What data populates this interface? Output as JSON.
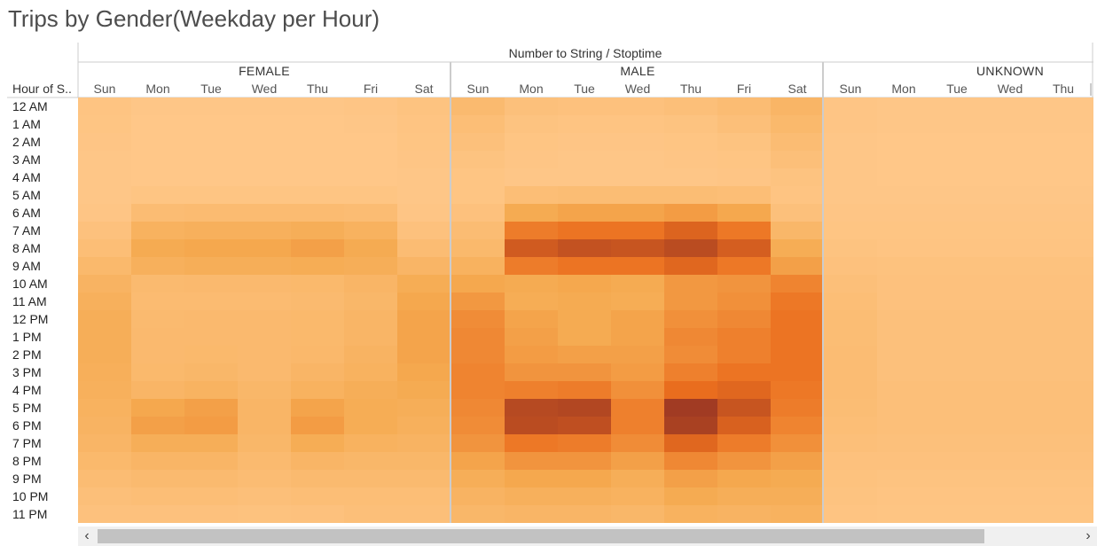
{
  "title": "Trips by Gender(Weekday per Hour)",
  "colors": {
    "low": "#ffc88a",
    "high": "#a13b23",
    "divider": "#cccccc",
    "scrollbar_track": "#f0f0f0",
    "scrollbar_thumb": "#c2c2c2"
  },
  "scrollbar": {
    "left_arrow": "‹",
    "right_arrow": "›"
  },
  "chart_data": {
    "type": "heatmap",
    "title": "Trips by Gender(Weekday per Hour)",
    "column_header": "Number to String / Stoptime",
    "row_header": "Hour of S..",
    "hours": [
      "12 AM",
      "1 AM",
      "2 AM",
      "3 AM",
      "4 AM",
      "5 AM",
      "6 AM",
      "7 AM",
      "8 AM",
      "9 AM",
      "10 AM",
      "11 AM",
      "12 PM",
      "1 PM",
      "2 PM",
      "3 PM",
      "4 PM",
      "5 PM",
      "6 PM",
      "7 PM",
      "8 PM",
      "9 PM",
      "10 PM",
      "11 PM"
    ],
    "days": [
      "Sun",
      "Mon",
      "Tue",
      "Wed",
      "Thu",
      "Fri",
      "Sat"
    ],
    "value_scale": "relative intensity 0-100 (color encoding, no legend shown)",
    "groups": [
      {
        "name": "FEMALE",
        "visible_days": 7,
        "values": [
          [
            5,
            2,
            2,
            2,
            2,
            3,
            6
          ],
          [
            4,
            1,
            1,
            1,
            1,
            2,
            5
          ],
          [
            3,
            1,
            1,
            1,
            1,
            1,
            4
          ],
          [
            2,
            1,
            1,
            1,
            1,
            1,
            3
          ],
          [
            2,
            1,
            1,
            1,
            1,
            1,
            2
          ],
          [
            2,
            4,
            4,
            4,
            4,
            4,
            2
          ],
          [
            3,
            14,
            15,
            15,
            15,
            14,
            3
          ],
          [
            8,
            26,
            28,
            28,
            30,
            26,
            8
          ],
          [
            12,
            34,
            36,
            36,
            40,
            34,
            14
          ],
          [
            18,
            28,
            30,
            30,
            32,
            30,
            22
          ],
          [
            24,
            16,
            17,
            17,
            18,
            22,
            32
          ],
          [
            28,
            15,
            15,
            15,
            16,
            20,
            36
          ],
          [
            30,
            16,
            17,
            17,
            18,
            22,
            38
          ],
          [
            30,
            17,
            17,
            17,
            18,
            22,
            38
          ],
          [
            30,
            17,
            18,
            17,
            19,
            24,
            38
          ],
          [
            29,
            18,
            20,
            17,
            22,
            26,
            36
          ],
          [
            28,
            22,
            25,
            20,
            26,
            30,
            34
          ],
          [
            26,
            36,
            40,
            22,
            38,
            32,
            30
          ],
          [
            24,
            40,
            42,
            22,
            42,
            32,
            28
          ],
          [
            22,
            30,
            30,
            20,
            32,
            26,
            24
          ],
          [
            18,
            22,
            22,
            16,
            22,
            20,
            20
          ],
          [
            14,
            16,
            16,
            14,
            16,
            16,
            16
          ],
          [
            10,
            12,
            12,
            10,
            12,
            12,
            12
          ],
          [
            8,
            8,
            8,
            7,
            8,
            10,
            10
          ]
        ]
      },
      {
        "name": "MALE",
        "visible_days": 7,
        "values": [
          [
            16,
            9,
            8,
            8,
            10,
            14,
            22
          ],
          [
            12,
            6,
            5,
            5,
            6,
            10,
            18
          ],
          [
            9,
            4,
            3,
            3,
            4,
            6,
            14
          ],
          [
            6,
            3,
            2,
            2,
            3,
            4,
            10
          ],
          [
            4,
            2,
            2,
            2,
            2,
            3,
            6
          ],
          [
            4,
            12,
            13,
            13,
            13,
            12,
            5
          ],
          [
            8,
            34,
            38,
            38,
            42,
            36,
            9
          ],
          [
            14,
            58,
            62,
            62,
            72,
            60,
            20
          ],
          [
            18,
            78,
            84,
            82,
            88,
            76,
            32
          ],
          [
            26,
            58,
            62,
            62,
            70,
            60,
            40
          ],
          [
            36,
            34,
            36,
            34,
            44,
            46,
            54
          ],
          [
            44,
            32,
            34,
            32,
            44,
            48,
            60
          ],
          [
            50,
            38,
            34,
            38,
            48,
            52,
            62
          ],
          [
            52,
            40,
            34,
            38,
            52,
            56,
            62
          ],
          [
            52,
            42,
            40,
            40,
            50,
            56,
            62
          ],
          [
            54,
            46,
            46,
            42,
            56,
            62,
            62
          ],
          [
            54,
            56,
            58,
            48,
            66,
            70,
            60
          ],
          [
            52,
            90,
            92,
            56,
            100,
            82,
            58
          ],
          [
            50,
            88,
            86,
            56,
            96,
            74,
            54
          ],
          [
            46,
            60,
            58,
            50,
            70,
            58,
            48
          ],
          [
            38,
            46,
            46,
            40,
            52,
            46,
            40
          ],
          [
            30,
            36,
            36,
            30,
            40,
            36,
            34
          ],
          [
            24,
            28,
            28,
            26,
            34,
            30,
            30
          ],
          [
            20,
            22,
            22,
            20,
            26,
            24,
            26
          ]
        ]
      },
      {
        "name": "UNKNOWN",
        "visible_days": 5,
        "values": [
          [
            3,
            2,
            2,
            2,
            2
          ],
          [
            3,
            2,
            2,
            2,
            2
          ],
          [
            2,
            1,
            1,
            1,
            1
          ],
          [
            2,
            1,
            1,
            1,
            1
          ],
          [
            2,
            1,
            1,
            1,
            1
          ],
          [
            2,
            2,
            2,
            2,
            2
          ],
          [
            3,
            3,
            3,
            3,
            3
          ],
          [
            4,
            4,
            4,
            4,
            4
          ],
          [
            6,
            5,
            5,
            5,
            5
          ],
          [
            8,
            7,
            7,
            7,
            7
          ],
          [
            10,
            8,
            8,
            8,
            8
          ],
          [
            12,
            8,
            8,
            8,
            8
          ],
          [
            13,
            9,
            9,
            9,
            9
          ],
          [
            13,
            9,
            9,
            9,
            9
          ],
          [
            14,
            9,
            9,
            9,
            9
          ],
          [
            14,
            9,
            9,
            9,
            9
          ],
          [
            14,
            10,
            10,
            10,
            10
          ],
          [
            13,
            10,
            10,
            10,
            10
          ],
          [
            12,
            10,
            10,
            10,
            10
          ],
          [
            10,
            9,
            9,
            9,
            9
          ],
          [
            8,
            8,
            8,
            8,
            8
          ],
          [
            7,
            6,
            6,
            6,
            6
          ],
          [
            6,
            5,
            5,
            5,
            5
          ],
          [
            5,
            4,
            4,
            4,
            4
          ]
        ]
      }
    ]
  }
}
